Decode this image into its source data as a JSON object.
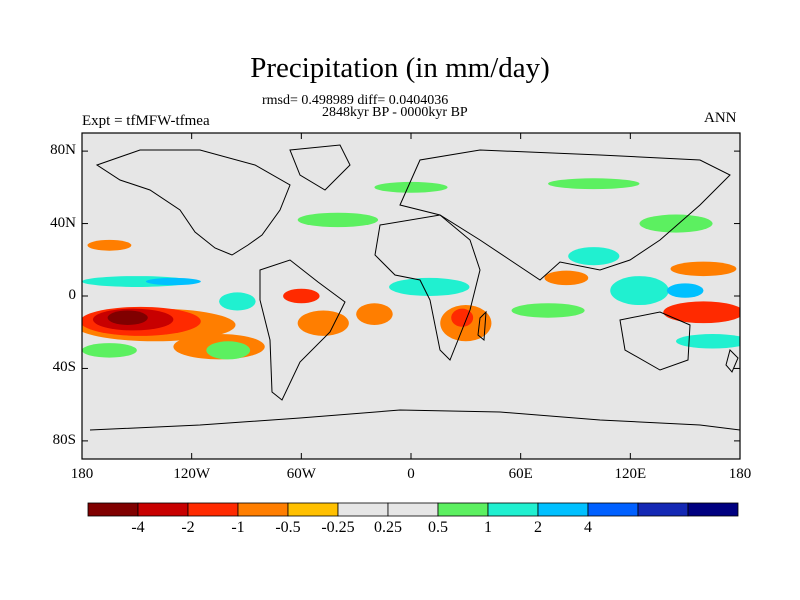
{
  "title": "Precipitation (in mm/day)",
  "stats": "rmsd= 0.498989 diff= 0.0404036",
  "period": "2848kyr BP - 0000kyr BP",
  "experiment": "Expt = tfMFW-tfmea",
  "season": "ANN",
  "lat_ticks": [
    "80N",
    "40N",
    "0",
    "40S",
    "80S"
  ],
  "lon_ticks": [
    "180",
    "120W",
    "60W",
    "0",
    "60E",
    "120E",
    "180"
  ],
  "colorbar": {
    "colors": [
      "#800000",
      "#c80000",
      "#ff2a00",
      "#ff7e00",
      "#ffc000",
      "#e6e6e6",
      "#e6e6e6",
      "#5cf060",
      "#20f0d0",
      "#00c0ff",
      "#0060ff",
      "#1428b4",
      "#000080"
    ],
    "labels": [
      "-4",
      "-2",
      "-1",
      "-0.5",
      "-0.25",
      "0.25",
      "0.5",
      "1",
      "2",
      "4"
    ]
  },
  "fields": [
    {
      "v": -4,
      "lon": -155,
      "lat": -12,
      "rx": 11,
      "ry": 4
    },
    {
      "v": -2,
      "lon": -152,
      "lat": -13,
      "rx": 22,
      "ry": 6
    },
    {
      "v": -1,
      "lon": -148,
      "lat": -14,
      "rx": 33,
      "ry": 8
    },
    {
      "v": -0.5,
      "lon": -140,
      "lat": -16,
      "rx": 44,
      "ry": 9
    },
    {
      "v": -0.5,
      "lon": -105,
      "lat": -28,
      "rx": 25,
      "ry": 7
    },
    {
      "v": -0.5,
      "lon": -48,
      "lat": -15,
      "rx": 14,
      "ry": 7
    },
    {
      "v": -1,
      "lon": -60,
      "lat": 0,
      "rx": 10,
      "ry": 4
    },
    {
      "v": -0.5,
      "lon": -20,
      "lat": -10,
      "rx": 10,
      "ry": 6
    },
    {
      "v": -0.5,
      "lon": 30,
      "lat": -15,
      "rx": 14,
      "ry": 10
    },
    {
      "v": -1,
      "lon": 28,
      "lat": -12,
      "rx": 6,
      "ry": 5
    },
    {
      "v": -0.5,
      "lon": 85,
      "lat": 10,
      "rx": 12,
      "ry": 4
    },
    {
      "v": -0.5,
      "lon": -165,
      "lat": 28,
      "rx": 12,
      "ry": 3
    },
    {
      "v": -1,
      "lon": 160,
      "lat": -9,
      "rx": 22,
      "ry": 6
    },
    {
      "v": -0.5,
      "lon": 160,
      "lat": 15,
      "rx": 18,
      "ry": 4
    },
    {
      "v": 1,
      "lon": -150,
      "lat": 8,
      "rx": 30,
      "ry": 3
    },
    {
      "v": 2,
      "lon": -130,
      "lat": 8,
      "rx": 15,
      "ry": 2
    },
    {
      "v": 1,
      "lon": -95,
      "lat": -3,
      "rx": 10,
      "ry": 5
    },
    {
      "v": 0.5,
      "lon": -100,
      "lat": -30,
      "rx": 12,
      "ry": 5
    },
    {
      "v": 1,
      "lon": 10,
      "lat": 5,
      "rx": 22,
      "ry": 5
    },
    {
      "v": 1,
      "lon": 125,
      "lat": 3,
      "rx": 16,
      "ry": 8
    },
    {
      "v": 2,
      "lon": 150,
      "lat": 3,
      "rx": 10,
      "ry": 4
    },
    {
      "v": 1,
      "lon": 100,
      "lat": 22,
      "rx": 14,
      "ry": 5
    },
    {
      "v": 1,
      "lon": 165,
      "lat": -25,
      "rx": 20,
      "ry": 4
    },
    {
      "v": 0.5,
      "lon": 75,
      "lat": -8,
      "rx": 20,
      "ry": 4
    },
    {
      "v": 0.5,
      "lon": -40,
      "lat": 42,
      "rx": 22,
      "ry": 4
    },
    {
      "v": 0.5,
      "lon": 0,
      "lat": 60,
      "rx": 20,
      "ry": 3
    },
    {
      "v": 0.5,
      "lon": 100,
      "lat": 62,
      "rx": 25,
      "ry": 3
    },
    {
      "v": 0.5,
      "lon": 145,
      "lat": 40,
      "rx": 20,
      "ry": 5
    },
    {
      "v": 0.5,
      "lon": -165,
      "lat": -30,
      "rx": 15,
      "ry": 4
    }
  ]
}
